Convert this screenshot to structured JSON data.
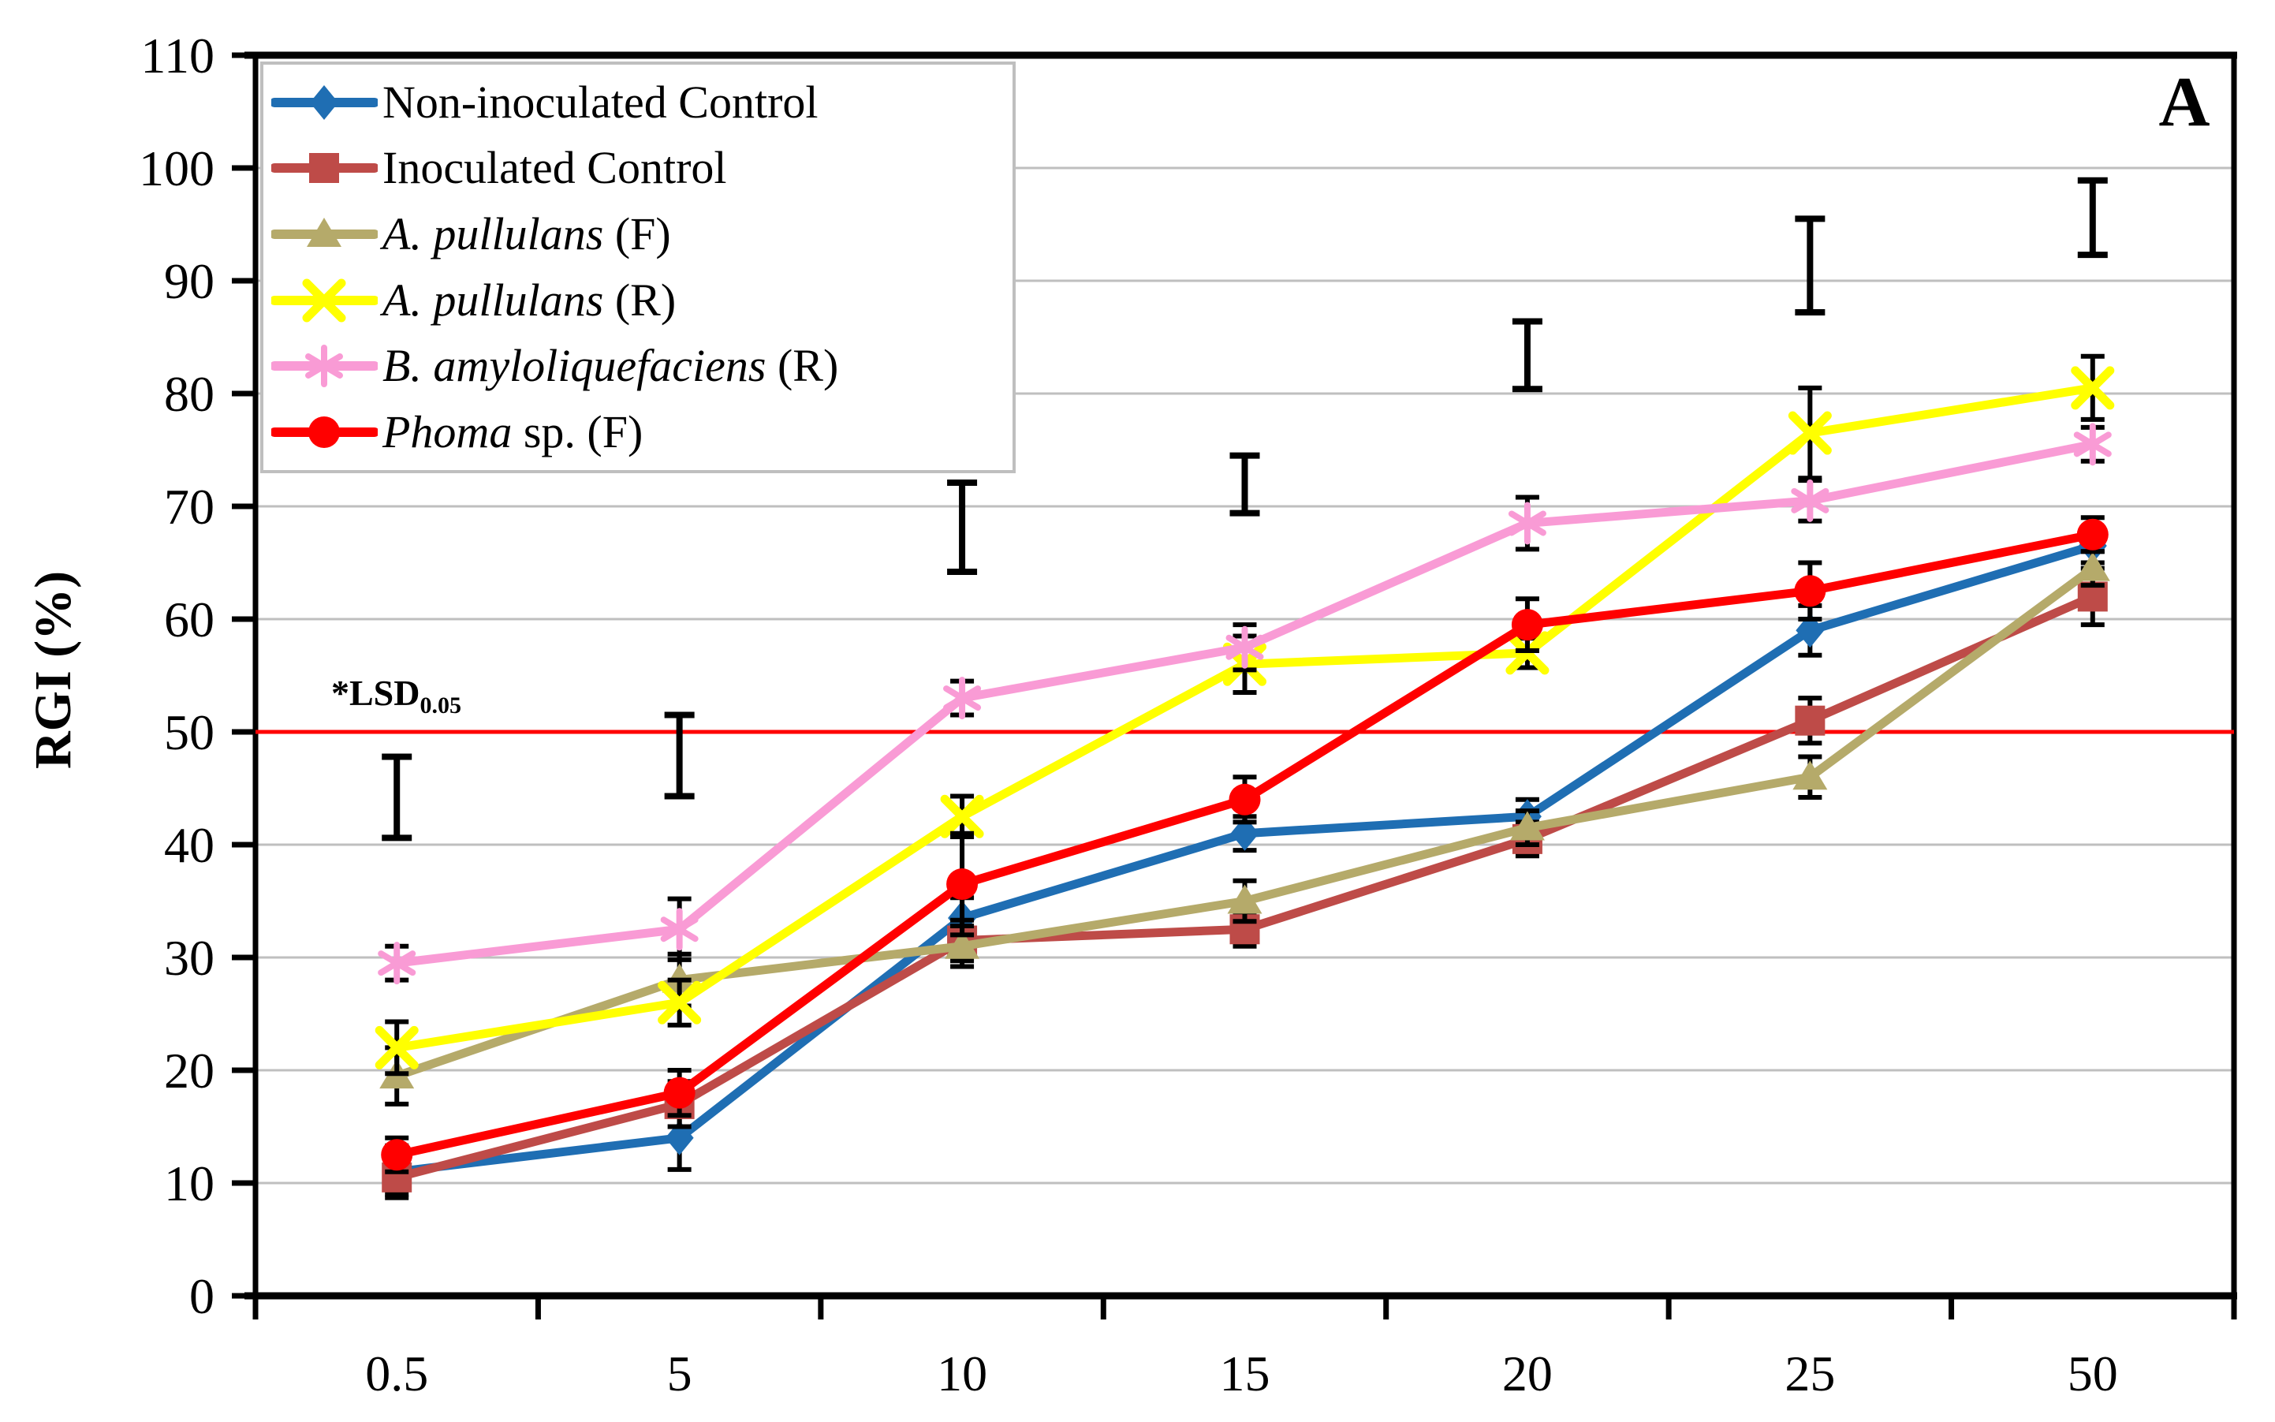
{
  "panel_label": "A",
  "lsd_annotation": {
    "text": "*LSD",
    "subscript": "0.05"
  },
  "chart_data": {
    "type": "line",
    "title": "",
    "xlabel": "",
    "ylabel": "RGI (%)",
    "ylim": [
      0,
      110
    ],
    "ytick_step": 10,
    "grid": "horizontal-gray-lines",
    "legend_position": "top-left",
    "categories": [
      "0.5",
      "5",
      "10",
      "15",
      "20",
      "25",
      "50"
    ],
    "reference_line": {
      "value": 50,
      "color": "#FF0000",
      "label": "*LSD0.05"
    },
    "lsd_bars": [
      {
        "category": "0.5",
        "low": 40.6,
        "high": 47.8
      },
      {
        "category": "5",
        "low": 44.3,
        "high": 51.5
      },
      {
        "category": "10",
        "low": 64.2,
        "high": 72.1
      },
      {
        "category": "15",
        "low": 69.4,
        "high": 74.5
      },
      {
        "category": "20",
        "low": 80.4,
        "high": 86.4
      },
      {
        "category": "25",
        "low": 87.2,
        "high": 95.5
      },
      {
        "category": "50",
        "low": 92.3,
        "high": 98.9
      }
    ],
    "series": [
      {
        "name_italic": "",
        "name_roman": "Non-inoculated Control",
        "marker": "diamond",
        "color": "#1F6EB3",
        "values": [
          11,
          14,
          33.5,
          41,
          42.5,
          59,
          66.5
        ],
        "errors": [
          2.3,
          2.8,
          1.8,
          1.5,
          1.5,
          2.2,
          1.5
        ]
      },
      {
        "name_italic": "",
        "name_roman": "Inoculated Control",
        "marker": "square",
        "color": "#BE4B48",
        "values": [
          10.5,
          17,
          31.5,
          32.5,
          40.5,
          51,
          62
        ],
        "errors": [
          1.5,
          2.0,
          1.8,
          1.5,
          1.5,
          2.0,
          2.5
        ]
      },
      {
        "name_italic": "A. pullulans",
        "name_roman": " (F)",
        "marker": "triangle",
        "color": "#B5AA6A",
        "values": [
          19.5,
          28,
          31,
          35,
          41.5,
          46,
          64.5
        ],
        "errors": [
          2.5,
          2.3,
          1.8,
          1.8,
          1.5,
          1.8,
          1.5
        ]
      },
      {
        "name_italic": "A. pullulans",
        "name_roman": " (R)",
        "marker": "x",
        "color": "#FFFF00",
        "values": [
          22,
          26,
          42.5,
          56,
          57,
          76.5,
          80.5
        ],
        "errors": [
          2.3,
          2.0,
          1.8,
          2.5,
          1.3,
          4.0,
          2.8
        ]
      },
      {
        "name_italic": "B. amyloliquefaciens",
        "name_roman": " (R)",
        "marker": "asterisk",
        "color": "#F99BD5",
        "values": [
          29.5,
          32.5,
          53,
          57.5,
          68.5,
          70.5,
          75.5
        ],
        "errors": [
          1.5,
          2.7,
          1.5,
          2.0,
          2.3,
          1.8,
          1.5
        ]
      },
      {
        "name_italic": "Phoma",
        "name_roman": " sp. (F)",
        "marker": "circle",
        "color": "#FF0000",
        "values": [
          12.5,
          18,
          36.5,
          44,
          59.5,
          62.5,
          67.5
        ],
        "errors": [
          1.5,
          2.0,
          4.5,
          2.0,
          2.3,
          2.5,
          1.5
        ]
      }
    ],
    "axis_color": "#000000",
    "gridline_color": "#BFBFBF",
    "error_bar_color": "#000000"
  }
}
